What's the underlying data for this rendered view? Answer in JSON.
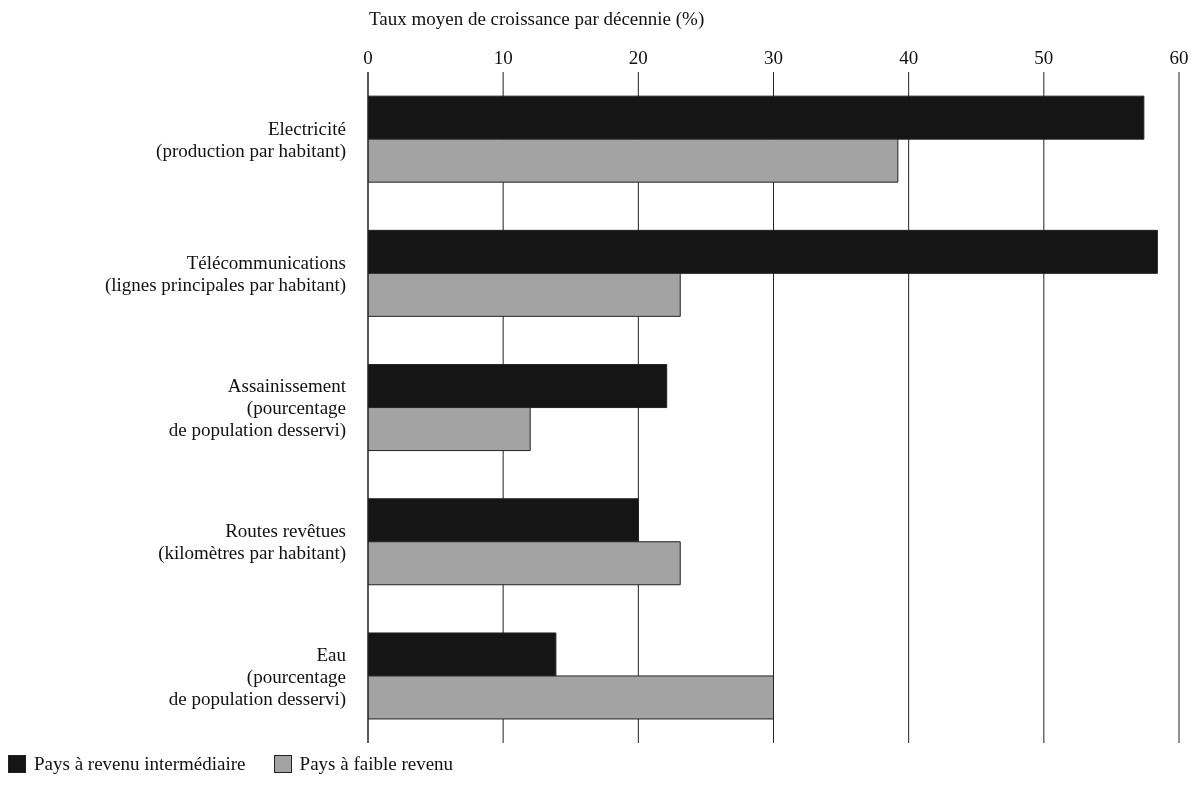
{
  "chart_data": {
    "type": "bar",
    "orientation": "horizontal",
    "xlabel": "Taux moyen de croissance par décennie (%)",
    "categories": [
      "Electricité\n(production par habitant)",
      "Télécommunications\n(lignes principales par habitant)",
      "Assainissement\n(pourcentage\nde population desservi)",
      "Routes revêtues\n(kilomètres par habitant)",
      "Eau\n(pourcentage\nde population desservi)"
    ],
    "series": [
      {
        "name": "Pays à revenu intermédiaire",
        "color": "#151515",
        "values": [
          57.4,
          58.4,
          22.1,
          20.0,
          13.9
        ]
      },
      {
        "name": "Pays à faible revenu",
        "color": "#a3a3a3",
        "values": [
          39.2,
          23.1,
          12.0,
          23.1,
          30.0
        ]
      }
    ],
    "xlim": [
      0,
      60
    ],
    "xticks": [
      0,
      10,
      20,
      30,
      40,
      50,
      60
    ],
    "grid": "x",
    "legend": "bottom"
  }
}
